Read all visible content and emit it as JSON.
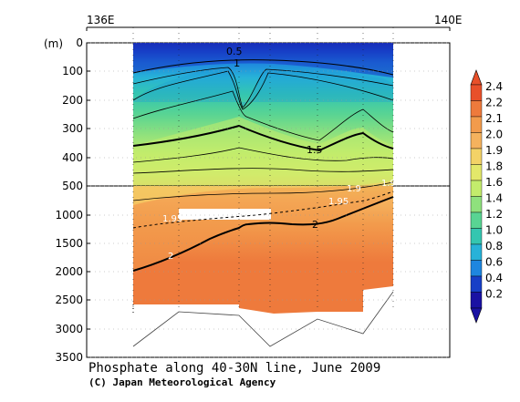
{
  "chart_data": {
    "type": "heatmap",
    "title": "Phosphate along 40-30N line, June 2009",
    "credit": "(C) Japan Meteorological Agency",
    "y_unit_label": "(m)",
    "top_axis_labels": [
      "136E",
      "140E"
    ],
    "y_ticks": [
      "0",
      "100",
      "200",
      "300",
      "400",
      "500",
      "1000",
      "1500",
      "2000",
      "2500",
      "3000",
      "3500"
    ],
    "colorbar": {
      "levels": [
        "2.4",
        "2.2",
        "2.1",
        "2.0",
        "1.9",
        "1.8",
        "1.6",
        "1.4",
        "1.2",
        "1.0",
        "0.8",
        "0.6",
        "0.4",
        "0.2"
      ],
      "colors": [
        "#e8502a",
        "#ee7a3c",
        "#f29b4c",
        "#f5b25e",
        "#f3d267",
        "#e3e86a",
        "#c3ec6c",
        "#8fe17d",
        "#59d493",
        "#34c6b0",
        "#27b2d8",
        "#1e86df",
        "#173fc7",
        "#1a12a3"
      ]
    },
    "contour_labels": [
      "0.5",
      "1",
      "1.5",
      "1.9",
      "1.9",
      "1.95",
      "1.95",
      "2",
      "2"
    ]
  }
}
